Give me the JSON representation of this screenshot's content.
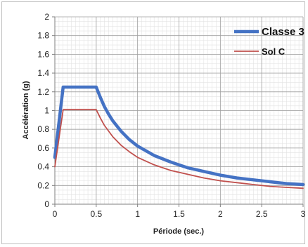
{
  "chart_data": {
    "type": "line",
    "xlabel": "Période (sec.)",
    "ylabel": "Accélération (g)",
    "xlim": [
      0,
      3
    ],
    "ylim": [
      0,
      2
    ],
    "x_ticks": [
      "0",
      "0.5",
      "1",
      "1.5",
      "2",
      "2.5",
      "3"
    ],
    "y_ticks": [
      "0",
      "0.2",
      "0.4",
      "0.6",
      "0.8",
      "1",
      "1.2",
      "1.4",
      "1.6",
      "1.8",
      "2"
    ],
    "grid": true,
    "legend_position": "top-right",
    "series": [
      {
        "name": "Classe 3",
        "color": "#4472c4",
        "x": [
          0,
          0.1,
          0.5,
          0.55,
          0.6,
          0.65,
          0.7,
          0.8,
          0.9,
          1.0,
          1.2,
          1.4,
          1.6,
          1.8,
          2.0,
          2.2,
          2.4,
          2.6,
          2.8,
          3.0
        ],
        "y": [
          0.5,
          1.25,
          1.25,
          1.14,
          1.04,
          0.96,
          0.89,
          0.78,
          0.69,
          0.62,
          0.52,
          0.45,
          0.39,
          0.35,
          0.31,
          0.28,
          0.26,
          0.24,
          0.22,
          0.21
        ]
      },
      {
        "name": "Sol C",
        "color": "#c0504d",
        "x": [
          0,
          0.1,
          0.5,
          0.55,
          0.6,
          0.65,
          0.7,
          0.8,
          0.9,
          1.0,
          1.2,
          1.4,
          1.6,
          1.8,
          2.0,
          2.2,
          2.4,
          2.6,
          2.8,
          3.0
        ],
        "y": [
          0.4,
          1.01,
          1.01,
          0.92,
          0.84,
          0.78,
          0.72,
          0.63,
          0.56,
          0.5,
          0.42,
          0.36,
          0.32,
          0.28,
          0.25,
          0.23,
          0.21,
          0.19,
          0.18,
          0.17
        ]
      }
    ]
  }
}
